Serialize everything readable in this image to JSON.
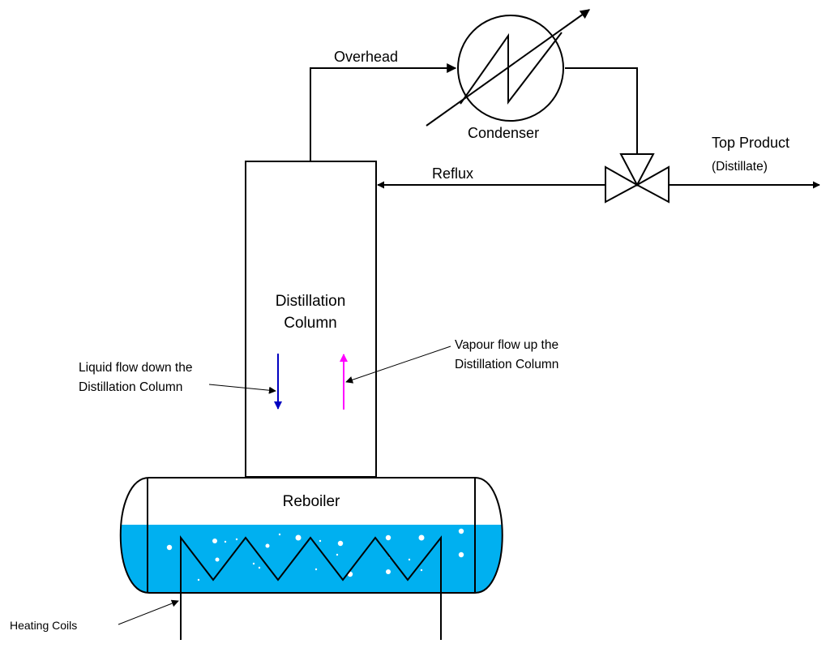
{
  "labels": {
    "overhead": "Overhead",
    "condenser": "Condenser",
    "top_product_line1": "Top Product",
    "top_product_line2": "(Distillate)",
    "reflux": "Reflux",
    "column_line1": "Distillation",
    "column_line2": "Column",
    "liquid_line1": "Liquid flow down the",
    "liquid_line2": "Distillation Column",
    "vapour_line1": "Vapour flow up the",
    "vapour_line2": "Distillation Column",
    "reboiler": "Reboiler",
    "heating_coils": "Heating Coils"
  },
  "colors": {
    "line": "#000000",
    "liquid": "#00b0f0",
    "liquid_flow_arrow": "#0000c0",
    "vapour_flow_arrow": "#ff00ff",
    "bubble": "#ffffff"
  }
}
